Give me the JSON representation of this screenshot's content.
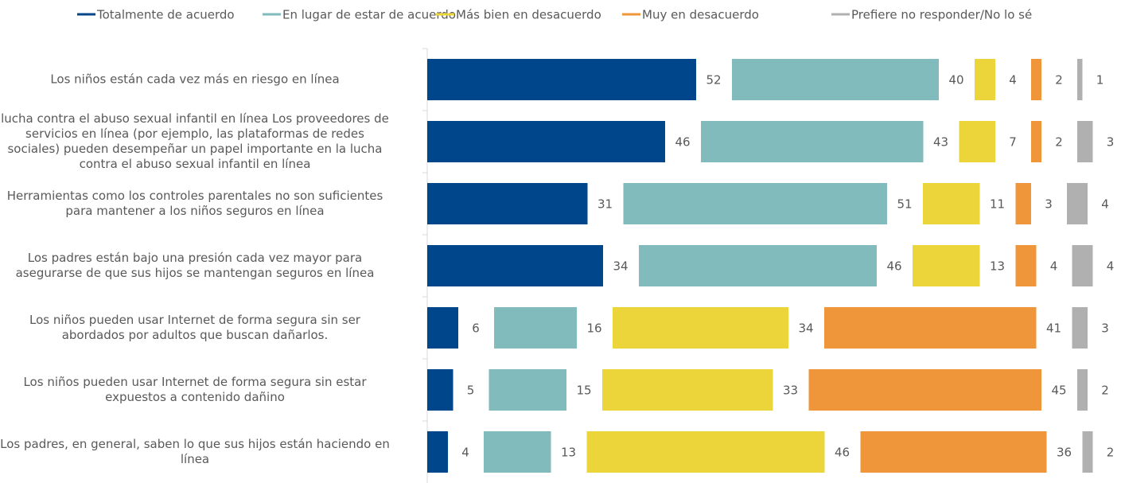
{
  "chart_data": {
    "type": "stacked-bar-horizontal",
    "categories": [
      "Los niños están cada vez más en riesgo en línea",
      "lucha contra el abuso sexual infantil en línea Los proveedores de servicios en línea (por ejemplo, las plataformas de redes sociales) pueden desempeñar un papel importante en la lucha contra el abuso sexual infantil en línea",
      "Herramientas como los controles parentales no son suficientes para mantener a los niños seguros en línea",
      "Los padres están bajo una presión cada vez mayor para asegurarse de que sus hijos se mantengan seguros en línea",
      "Los niños pueden usar Internet de forma segura sin ser abordados por adultos que buscan dañarlos.",
      "Los niños pueden usar Internet de forma segura sin estar expuestos a contenido dañino",
      "Los padres, en general, saben lo que sus hijos están haciendo en línea"
    ],
    "series": [
      {
        "name": "Totalmente de acuerdo",
        "color": "#00468b",
        "values": [
          52,
          46,
          31,
          34,
          6,
          5,
          4
        ]
      },
      {
        "name": "En lugar de estar de acuerdo",
        "color": "#82bbbb",
        "values": [
          40,
          43,
          51,
          46,
          16,
          15,
          13
        ]
      },
      {
        "name": "Más bien en desacuerdo",
        "color": "#ecd43b",
        "values": [
          4,
          7,
          11,
          13,
          34,
          33,
          46
        ]
      },
      {
        "name": "Muy en desacuerdo",
        "color": "#f0963a",
        "values": [
          2,
          2,
          3,
          4,
          41,
          45,
          36
        ]
      },
      {
        "name": "Prefiere no responder/No lo sé",
        "color": "#b0b0b0",
        "values": [
          1,
          3,
          4,
          4,
          3,
          2,
          2
        ]
      }
    ],
    "legend": "top"
  }
}
